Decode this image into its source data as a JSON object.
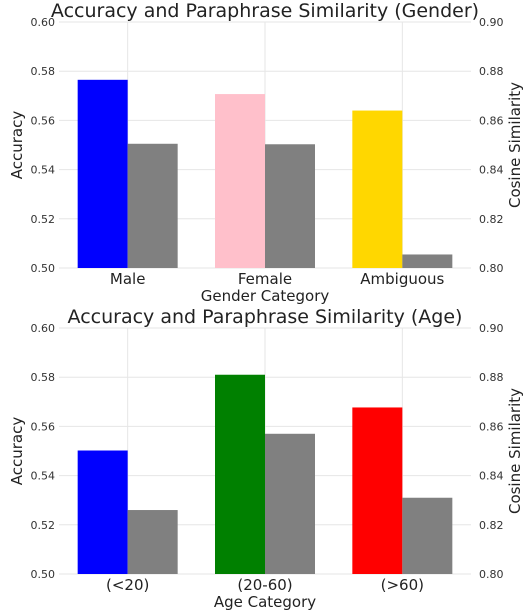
{
  "chart_data": [
    {
      "type": "bar",
      "title": "Accuracy and Paraphrase Similarity (Gender)",
      "xlabel": "Gender Category",
      "ylabel": "Accuracy",
      "y2label": "Cosine Similarity",
      "categories": [
        "Male",
        "Female",
        "Ambiguous"
      ],
      "ylim": [
        0.5,
        0.6
      ],
      "y2lim": [
        0.8,
        0.9
      ],
      "yticks": [
        "0.50",
        "0.52",
        "0.54",
        "0.56",
        "0.58",
        "0.60"
      ],
      "y2ticks": [
        "0.80",
        "0.82",
        "0.84",
        "0.86",
        "0.88",
        "0.90"
      ],
      "grid": true,
      "series": [
        {
          "axis": "left",
          "values": [
            0.5765,
            0.5707,
            0.564
          ],
          "colors": [
            "#0000ff",
            "#ffc0cb",
            "#ffd700"
          ]
        },
        {
          "axis": "right",
          "values": [
            0.8505,
            0.8503,
            0.8055
          ],
          "colors": [
            "#808080",
            "#808080",
            "#808080"
          ]
        }
      ]
    },
    {
      "type": "bar",
      "title": "Accuracy and Paraphrase Similarity (Age)",
      "xlabel": "Age Category",
      "ylabel": "Accuracy",
      "y2label": "Cosine Similarity",
      "categories": [
        "(<20)",
        "(20-60)",
        "(>60)"
      ],
      "ylim": [
        0.5,
        0.6
      ],
      "y2lim": [
        0.8,
        0.9
      ],
      "yticks": [
        "0.50",
        "0.52",
        "0.54",
        "0.56",
        "0.58",
        "0.60"
      ],
      "y2ticks": [
        "0.80",
        "0.82",
        "0.84",
        "0.86",
        "0.88",
        "0.90"
      ],
      "grid": true,
      "series": [
        {
          "axis": "left",
          "values": [
            0.5502,
            0.581,
            0.5677
          ],
          "colors": [
            "#0000ff",
            "#008000",
            "#ff0000"
          ]
        },
        {
          "axis": "right",
          "values": [
            0.826,
            0.857,
            0.831
          ],
          "colors": [
            "#808080",
            "#808080",
            "#808080"
          ]
        }
      ]
    }
  ]
}
